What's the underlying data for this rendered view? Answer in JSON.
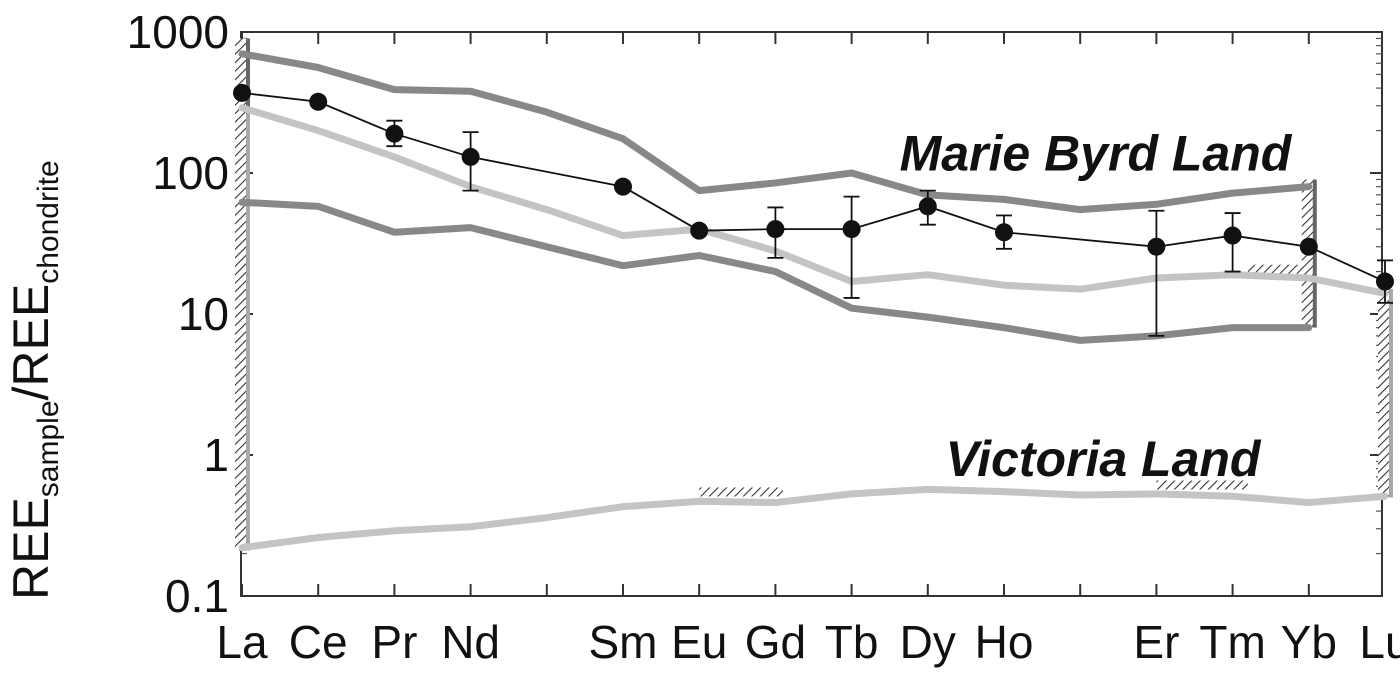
{
  "chart_data": {
    "type": "line",
    "y_scale": "log",
    "ylim": [
      0.1,
      1000
    ],
    "grid": false,
    "ylabel": {
      "main1": "REE",
      "sub1": "sample",
      "slash": "/REE",
      "sub2": "chondrite"
    },
    "y_ticks": [
      {
        "value": 0.1,
        "label": "0.1"
      },
      {
        "value": 1,
        "label": "1"
      },
      {
        "value": 10,
        "label": "10"
      },
      {
        "value": 100,
        "label": "100"
      },
      {
        "value": 1000,
        "label": "1000"
      }
    ],
    "categories": [
      "La",
      "Ce",
      "Pr",
      "Nd",
      "Sm",
      "Eu",
      "Gd",
      "Tb",
      "Dy",
      "Ho",
      "Er",
      "Tm",
      "Yb",
      "Lu"
    ],
    "category_positions": [
      1,
      2,
      3,
      4,
      6,
      7,
      8,
      9,
      10,
      11,
      13,
      14,
      15,
      16
    ],
    "x_range": [
      1,
      16
    ],
    "annotations": [
      {
        "text": "Marie Byrd Land",
        "x": 12.2,
        "y": 140
      },
      {
        "text": "Victoria Land",
        "x": 12.3,
        "y": 0.95
      }
    ],
    "sample": {
      "x": [
        1,
        2,
        3,
        4,
        6,
        7,
        8,
        9,
        10,
        11,
        13,
        14,
        15,
        16
      ],
      "y": [
        370,
        320,
        190,
        130,
        80,
        39,
        40,
        40,
        58,
        38,
        30,
        36,
        30,
        17
      ],
      "err_low": [
        370,
        320,
        155,
        75,
        80,
        39,
        25,
        13,
        43,
        29,
        7,
        20,
        30,
        12
      ],
      "err_high": [
        370,
        320,
        235,
        195,
        80,
        39,
        57,
        68,
        75,
        50,
        54,
        52,
        30,
        24
      ],
      "color": "#111111"
    },
    "series": [
      {
        "color": "#888888",
        "x": [
          1,
          2,
          3,
          4,
          5,
          6,
          7,
          8,
          9,
          10,
          11,
          12,
          13,
          14,
          15
        ],
        "y": [
          700,
          560,
          390,
          380,
          270,
          175,
          75,
          85,
          100,
          70,
          65,
          55,
          60,
          72,
          80
        ]
      },
      {
        "color": "#888888",
        "x": [
          1,
          2,
          3,
          4,
          5,
          6,
          7,
          8,
          9,
          10,
          11,
          12,
          13,
          14,
          15
        ],
        "y": [
          62,
          58,
          38,
          41,
          30,
          22,
          26,
          20,
          11,
          9.5,
          8,
          6.5,
          7,
          8,
          8
        ]
      },
      {
        "color": "#c4c4c4",
        "x": [
          1,
          2,
          3,
          4,
          5,
          6,
          7,
          8,
          9,
          10,
          11,
          12,
          13,
          14,
          15,
          16
        ],
        "y": [
          290,
          200,
          130,
          80,
          55,
          36,
          40,
          28,
          17,
          19,
          16,
          15,
          18,
          19,
          18,
          14
        ]
      },
      {
        "color": "#c4c4c4",
        "x": [
          1,
          2,
          3,
          4,
          5,
          6,
          7,
          8,
          9,
          10,
          11,
          12,
          13,
          14,
          15,
          16
        ],
        "y": [
          0.22,
          0.26,
          0.29,
          0.31,
          0.36,
          0.43,
          0.47,
          0.46,
          0.53,
          0.57,
          0.55,
          0.52,
          0.53,
          0.51,
          0.46,
          0.51
        ]
      }
    ],
    "hatch_verticals": [
      {
        "x": 1,
        "y_low": 60,
        "y_high": 900,
        "color": "#666666"
      },
      {
        "x": 1,
        "y_low": 0.21,
        "y_high": 290,
        "color": "#a8a8a8"
      },
      {
        "x": 15,
        "y_low": 8,
        "y_high": 90,
        "color": "#666666"
      },
      {
        "x": 16,
        "y_low": 0.5,
        "y_high": 15,
        "color": "#a8a8a8"
      }
    ],
    "hatch_horizontals": [
      {
        "x_start": 7,
        "x_end": 8.1,
        "y": 0.5
      },
      {
        "x_start": 13,
        "x_end": 14.2,
        "y": 0.56
      },
      {
        "x_start": 14.2,
        "x_end": 15,
        "y": 19
      }
    ]
  }
}
